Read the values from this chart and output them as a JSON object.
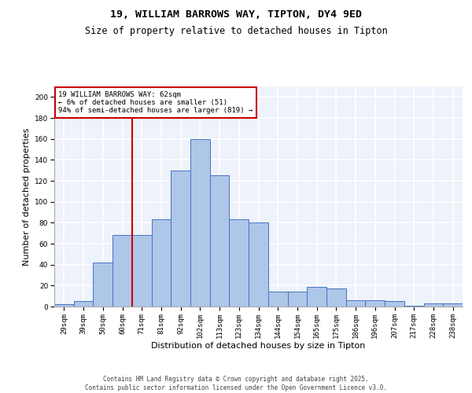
{
  "title1": "19, WILLIAM BARROWS WAY, TIPTON, DY4 9ED",
  "title2": "Size of property relative to detached houses in Tipton",
  "xlabel": "Distribution of detached houses by size in Tipton",
  "ylabel": "Number of detached properties",
  "categories": [
    "29sqm",
    "39sqm",
    "50sqm",
    "60sqm",
    "71sqm",
    "81sqm",
    "92sqm",
    "102sqm",
    "113sqm",
    "123sqm",
    "134sqm",
    "144sqm",
    "154sqm",
    "165sqm",
    "175sqm",
    "186sqm",
    "196sqm",
    "207sqm",
    "217sqm",
    "228sqm",
    "238sqm"
  ],
  "values": [
    2,
    5,
    42,
    68,
    68,
    83,
    130,
    160,
    125,
    83,
    80,
    14,
    14,
    19,
    17,
    6,
    6,
    5,
    1,
    3,
    3
  ],
  "bar_color": "#aec6e8",
  "bar_edge_color": "#4472c4",
  "property_line_color": "#cc0000",
  "property_line_x": 3.5,
  "annotation_text": "19 WILLIAM BARROWS WAY: 62sqm\n← 6% of detached houses are smaller (51)\n94% of semi-detached houses are larger (819) →",
  "annotation_box_color": "#ffffff",
  "annotation_box_edge_color": "#cc0000",
  "ylim": [
    0,
    210
  ],
  "yticks": [
    0,
    20,
    40,
    60,
    80,
    100,
    120,
    140,
    160,
    180,
    200
  ],
  "footer": "Contains HM Land Registry data © Crown copyright and database right 2025.\nContains public sector information licensed under the Open Government Licence v3.0.",
  "background_color": "#eef2fa",
  "grid_color": "#ffffff",
  "title1_fontsize": 9.5,
  "title2_fontsize": 8.5,
  "tick_fontsize": 6.5,
  "ylabel_fontsize": 8,
  "xlabel_fontsize": 8,
  "annotation_fontsize": 6.5,
  "footer_fontsize": 5.5
}
